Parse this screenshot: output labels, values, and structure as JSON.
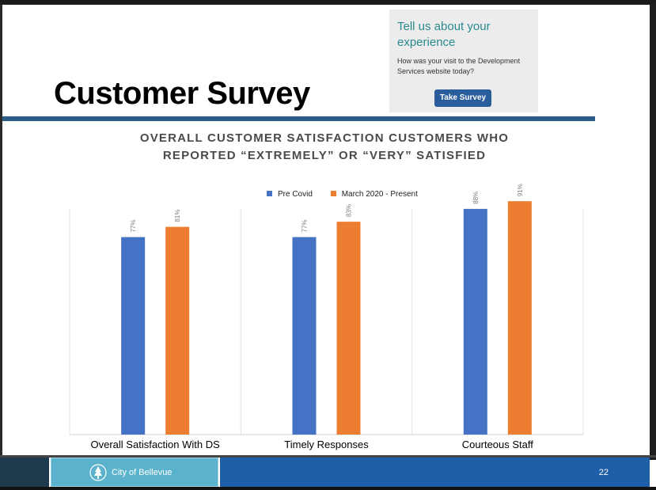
{
  "slide": {
    "title": "Customer Survey",
    "page_number": "22"
  },
  "survey_widget": {
    "heading": "Tell us about your experience",
    "question": "How was your visit to the Development Services website today?",
    "button_label": "Take Survey"
  },
  "footer": {
    "org_name": "City of Bellevue"
  },
  "colors": {
    "title_rule": "#2c5d8a",
    "pre_covid": "#4472c4",
    "march_2020": "#ed7d31",
    "survey_accent": "#2b8a8d",
    "footer_blue": "#1f5ea8",
    "footer_teal": "#5bb2cc"
  },
  "chart_data": {
    "type": "bar",
    "title": "OVERALL CUSTOMER SATISFACTION CUSTOMERS WHO REPORTED “EXTREMELY” OR “VERY” SATISFIED",
    "categories": [
      "Overall Satisfaction With DS",
      "Timely Responses",
      "Courteous Staff"
    ],
    "series": [
      {
        "name": "Pre Covid",
        "values": [
          77,
          77,
          88
        ],
        "labels": [
          "77%",
          "77%",
          "88%"
        ],
        "color": "#4472c4"
      },
      {
        "name": "March 2020 - Present",
        "values": [
          81,
          83,
          91
        ],
        "labels": [
          "81%",
          "83%",
          "91%"
        ],
        "color": "#ed7d31"
      }
    ],
    "ylim": [
      0,
      100
    ],
    "xlabel": "",
    "ylabel": "",
    "legend_position": "top-center",
    "grid": false,
    "category_dividers": true
  }
}
